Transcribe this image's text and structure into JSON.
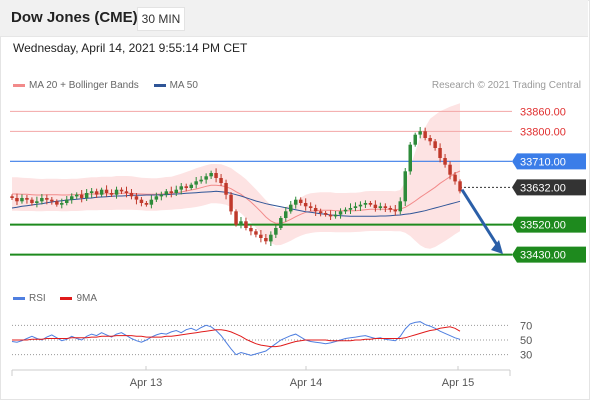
{
  "header": {
    "title": "Dow Jones (CME)",
    "timeframe": "30 MIN"
  },
  "datetime": "Wednesday, April 14, 2021 9:55:14 PM CET",
  "legend": [
    {
      "label": "MA 20 + Bollinger Bands",
      "color": "#f28a8a"
    },
    {
      "label": "MA 50",
      "color": "#2f5597"
    }
  ],
  "credit": "Research © 2021 Trading Central",
  "rsi_legend": [
    {
      "label": "RSI",
      "color": "#4f7fe0"
    },
    {
      "label": "9MA",
      "color": "#e01b1b"
    }
  ],
  "colors": {
    "up": "#2e8b3a",
    "down": "#c0392b",
    "bb_fill": "#fde3e3",
    "ma20": "#f28a8a",
    "ma50": "#2f5597",
    "resistance": "#f3a6a6",
    "pivot": "#3b7de8",
    "support": "#1e8a1e",
    "current": "#333333",
    "arrow": "#2b5fa8"
  },
  "chart_data": [
    {
      "type": "candlestick",
      "title": "Dow Jones (CME)",
      "ylim": [
        33360,
        33900
      ],
      "x_ticks": [
        "Apr 13",
        "Apr 14",
        "Apr 15"
      ],
      "levels": [
        {
          "value": 33860.0,
          "label": "33860.00",
          "kind": "resistance"
        },
        {
          "value": 33800.0,
          "label": "33800.00",
          "kind": "resistance"
        },
        {
          "value": 33710.0,
          "label": "33710.00",
          "kind": "pivot"
        },
        {
          "value": 33632.0,
          "label": "33632.00",
          "kind": "current"
        },
        {
          "value": 33520.0,
          "label": "33520.00",
          "kind": "support"
        },
        {
          "value": 33430.0,
          "label": "33430.00",
          "kind": "support"
        }
      ],
      "forecast_arrow": {
        "from": 33625,
        "to": 33432
      },
      "close": [
        33600,
        33590,
        33600,
        33595,
        33585,
        33590,
        33600,
        33595,
        33590,
        33580,
        33585,
        33595,
        33605,
        33610,
        33600,
        33615,
        33620,
        33610,
        33625,
        33615,
        33610,
        33625,
        33620,
        33615,
        33605,
        33595,
        33585,
        33580,
        33595,
        33605,
        33610,
        33620,
        33615,
        33625,
        33635,
        33630,
        33640,
        33650,
        33655,
        33665,
        33675,
        33660,
        33645,
        33610,
        33560,
        33520,
        33530,
        33510,
        33500,
        33490,
        33480,
        33470,
        33490,
        33510,
        33540,
        33560,
        33580,
        33595,
        33585,
        33575,
        33570,
        33560,
        33555,
        33550,
        33545,
        33550,
        33560,
        33565,
        33570,
        33575,
        33580,
        33585,
        33580,
        33570,
        33575,
        33570,
        33565,
        33560,
        33590,
        33680,
        33760,
        33790,
        33800,
        33780,
        33770,
        33750,
        33720,
        33700,
        33670,
        33650,
        33620
      ],
      "bb_mid": [
        33612,
        33612,
        33611,
        33611,
        33610,
        33609,
        33609,
        33610,
        33610,
        33610,
        33609,
        33609,
        33610,
        33610,
        33611,
        33612,
        33612,
        33612,
        33613,
        33613,
        33613,
        33614,
        33614,
        33614,
        33614,
        33613,
        33612,
        33611,
        33611,
        33611,
        33612,
        33613,
        33614,
        33616,
        33618,
        33621,
        33624,
        33627,
        33631,
        33635,
        33638,
        33638,
        33637,
        33634,
        33628,
        33619,
        33611,
        33600,
        33588,
        33574,
        33559,
        33543,
        33531,
        33524,
        33524,
        33529,
        33536,
        33544,
        33551,
        33557,
        33560,
        33562,
        33563,
        33563,
        33563,
        33562,
        33562,
        33562,
        33562,
        33562,
        33563,
        33565,
        33566,
        33566,
        33566,
        33566,
        33566,
        33565,
        33567,
        33572,
        33581,
        33591,
        33602,
        33612,
        33622,
        33632,
        33644,
        33654,
        33664,
        33674,
        33681
      ],
      "bb_up": [
        33662,
        33662,
        33661,
        33660,
        33659,
        33658,
        33657,
        33658,
        33658,
        33658,
        33657,
        33657,
        33658,
        33658,
        33659,
        33661,
        33662,
        33662,
        33664,
        33664,
        33664,
        33666,
        33666,
        33666,
        33665,
        33663,
        33661,
        33660,
        33659,
        33659,
        33661,
        33663,
        33664,
        33668,
        33673,
        33678,
        33683,
        33689,
        33694,
        33698,
        33702,
        33702,
        33701,
        33696,
        33690,
        33679,
        33668,
        33656,
        33641,
        33626,
        33610,
        33593,
        33579,
        33570,
        33569,
        33573,
        33581,
        33591,
        33601,
        33610,
        33614,
        33616,
        33617,
        33617,
        33617,
        33615,
        33615,
        33615,
        33616,
        33616,
        33617,
        33620,
        33621,
        33621,
        33621,
        33621,
        33621,
        33620,
        33624,
        33648,
        33692,
        33738,
        33783,
        33812,
        33838,
        33849,
        33860,
        33867,
        33874,
        33879,
        33884
      ],
      "bb_low": [
        33562,
        33562,
        33561,
        33561,
        33561,
        33560,
        33560,
        33561,
        33561,
        33561,
        33560,
        33560,
        33561,
        33561,
        33562,
        33563,
        33563,
        33563,
        33564,
        33564,
        33564,
        33565,
        33565,
        33565,
        33565,
        33564,
        33563,
        33562,
        33562,
        33562,
        33563,
        33564,
        33565,
        33566,
        33567,
        33569,
        33571,
        33573,
        33576,
        33580,
        33584,
        33584,
        33583,
        33580,
        33573,
        33563,
        33554,
        33540,
        33527,
        33511,
        33494,
        33477,
        33465,
        33458,
        33459,
        33465,
        33472,
        33480,
        33487,
        33492,
        33495,
        33497,
        33498,
        33498,
        33498,
        33497,
        33497,
        33497,
        33497,
        33498,
        33499,
        33500,
        33501,
        33501,
        33501,
        33501,
        33501,
        33500,
        33500,
        33496,
        33486,
        33472,
        33458,
        33450,
        33448,
        33453,
        33462,
        33471,
        33481,
        33491,
        33500
      ],
      "ma50": [
        33570,
        33572,
        33575,
        33577,
        33579,
        33581,
        33583,
        33586,
        33588,
        33590,
        33592,
        33594,
        33595,
        33596,
        33598,
        33599,
        33600,
        33602,
        33603,
        33604,
        33605,
        33606,
        33606,
        33607,
        33608,
        33608,
        33608,
        33609,
        33609,
        33609,
        33610,
        33610,
        33611,
        33612,
        33613,
        33614,
        33615,
        33616,
        33617,
        33618,
        33619,
        33620,
        33619,
        33617,
        33614,
        33610,
        33606,
        33601,
        33596,
        33591,
        33587,
        33583,
        33580,
        33577,
        33574,
        33571,
        33568,
        33565,
        33562,
        33559,
        33557,
        33555,
        33553,
        33551,
        33549,
        33548,
        33547,
        33546,
        33545,
        33545,
        33545,
        33545,
        33545,
        33545,
        33546,
        33546,
        33547,
        33548,
        33549,
        33551,
        33553,
        33556,
        33559,
        33562,
        33566,
        33570,
        33574,
        33578,
        33582,
        33586,
        33590
      ]
    },
    {
      "type": "line",
      "title": "RSI",
      "ylim": [
        20,
        80
      ],
      "y_ticks": [
        70,
        50,
        30
      ],
      "series": [
        {
          "name": "RSI",
          "values": [
            48,
            47,
            49,
            52,
            55,
            52,
            50,
            54,
            57,
            53,
            49,
            51,
            55,
            52,
            50,
            55,
            58,
            56,
            60,
            57,
            54,
            58,
            60,
            56,
            52,
            49,
            47,
            50,
            54,
            57,
            59,
            58,
            61,
            63,
            60,
            64,
            66,
            63,
            67,
            70,
            68,
            63,
            56,
            47,
            38,
            30,
            33,
            31,
            29,
            31,
            33,
            35,
            40,
            45,
            50,
            53,
            56,
            58,
            54,
            50,
            48,
            47,
            46,
            45,
            46,
            48,
            50,
            52,
            53,
            54,
            55,
            56,
            54,
            52,
            53,
            51,
            50,
            49,
            55,
            65,
            72,
            74,
            75,
            71,
            69,
            66,
            62,
            59,
            56,
            53,
            51
          ]
        },
        {
          "name": "9MA",
          "values": [
            50,
            50,
            50,
            50,
            51,
            51,
            51,
            52,
            52,
            52,
            52,
            52,
            53,
            53,
            53,
            53,
            54,
            54,
            55,
            55,
            55,
            56,
            56,
            56,
            56,
            55,
            55,
            54,
            54,
            54,
            54,
            55,
            55,
            56,
            57,
            58,
            59,
            60,
            61,
            62,
            63,
            64,
            64,
            63,
            61,
            58,
            55,
            51,
            48,
            45,
            43,
            42,
            41,
            41,
            42,
            44,
            46,
            48,
            49,
            50,
            50,
            50,
            50,
            50,
            49,
            49,
            49,
            49,
            49,
            50,
            50,
            51,
            51,
            52,
            52,
            52,
            52,
            52,
            52,
            53,
            55,
            57,
            59,
            61,
            63,
            64,
            66,
            67,
            68,
            66,
            62
          ]
        }
      ]
    }
  ]
}
